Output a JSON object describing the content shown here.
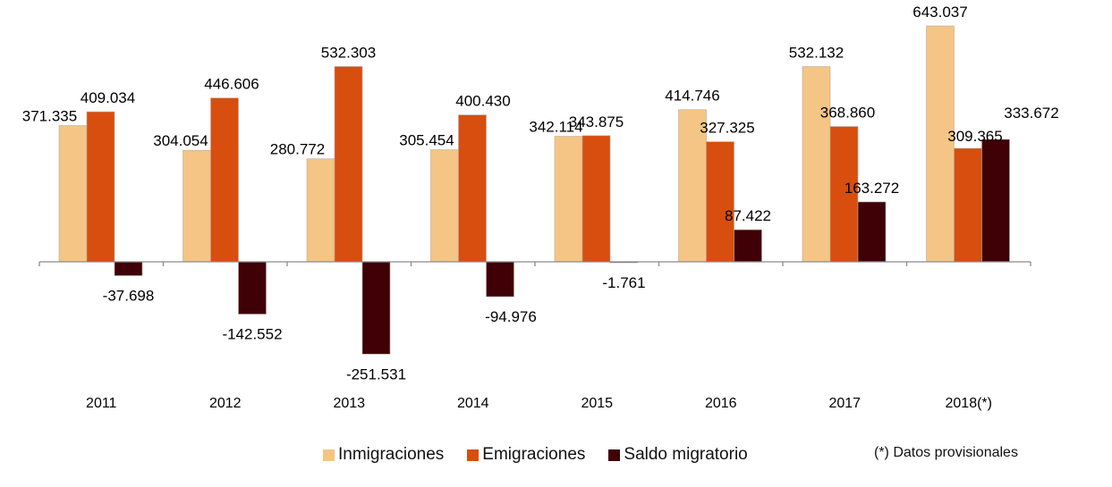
{
  "chart_data": {
    "type": "bar",
    "title": "",
    "xlabel": "",
    "ylabel": "",
    "ylim": [
      -260000,
      650000
    ],
    "grid": false,
    "legend_position": "bottom",
    "categories": [
      "2011",
      "2012",
      "2013",
      "2014",
      "2015",
      "2016",
      "2017",
      "2018(*)"
    ],
    "series": [
      {
        "name": "Inmigraciones",
        "color": "#F4C584",
        "values": [
          371335,
          304054,
          280772,
          305454,
          342114,
          414746,
          532132,
          643037
        ],
        "labels": [
          "371.335",
          "304.054",
          "280.772",
          "305.454",
          "342.114",
          "414.746",
          "532.132",
          "643.037"
        ]
      },
      {
        "name": "Emigraciones",
        "color": "#D84E0E",
        "values": [
          409034,
          446606,
          532303,
          400430,
          343875,
          327325,
          368860,
          309365
        ],
        "labels": [
          "409.034",
          "446.606",
          "532.303",
          "400.430",
          "343.875",
          "327.325",
          "368.860",
          "309.365"
        ]
      },
      {
        "name": "Saldo migratorio",
        "color": "#3F0006",
        "values": [
          -37698,
          -142552,
          -251531,
          -94976,
          -1761,
          87422,
          163272,
          333672
        ],
        "labels": [
          "-37.698",
          "-142.552",
          "-251.531",
          "-94.976",
          "-1.761",
          "87.422",
          "163.272",
          "333.672"
        ]
      }
    ],
    "footnote": "(*) Datos provisionales"
  }
}
